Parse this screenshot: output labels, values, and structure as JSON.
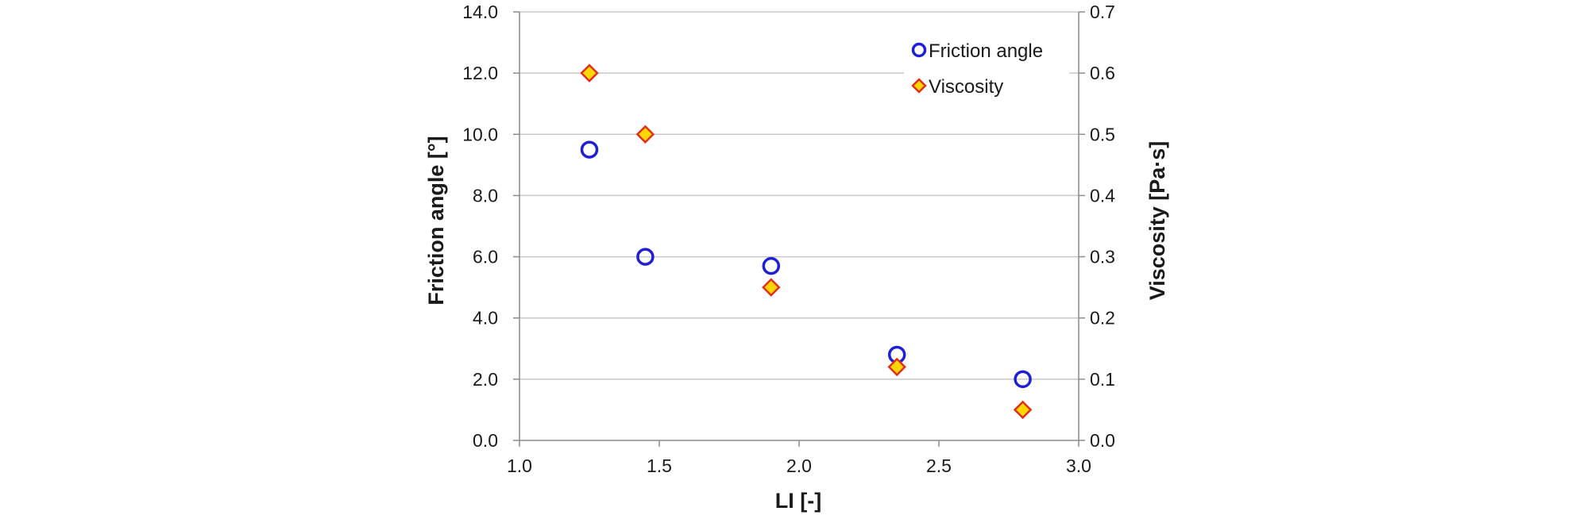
{
  "chart_data": {
    "type": "scatter",
    "xlabel": "LI [-]",
    "ylabel_left": "Friction angle [°]",
    "ylabel_right": "Viscosity [Pa·s]",
    "xlim": [
      1.0,
      3.0
    ],
    "ylim_left": [
      0.0,
      14.0
    ],
    "ylim_right": [
      0.0,
      0.7
    ],
    "x_ticks": [
      "1.0",
      "1.5",
      "2.0",
      "2.5",
      "3.0"
    ],
    "y_left_ticks": [
      "0.0",
      "2.0",
      "4.0",
      "6.0",
      "8.0",
      "10.0",
      "12.0",
      "14.0"
    ],
    "y_right_ticks": [
      "0.0",
      "0.1",
      "0.2",
      "0.3",
      "0.4",
      "0.5",
      "0.6",
      "0.7"
    ],
    "grid": "horizontal",
    "legend_position": "top-right",
    "series": [
      {
        "name": "Friction angle",
        "axis": "left",
        "marker": "circle",
        "color": "#1f1fd6",
        "x": [
          1.25,
          1.45,
          1.9,
          2.35,
          2.8
        ],
        "y": [
          9.5,
          6.0,
          5.7,
          2.8,
          2.0
        ]
      },
      {
        "name": "Viscosity",
        "axis": "right",
        "marker": "diamond",
        "color": "#ffd700",
        "edge_color": "#e0301e",
        "x": [
          1.25,
          1.45,
          1.9,
          2.35,
          2.8
        ],
        "y": [
          0.6,
          0.5,
          0.25,
          0.12,
          0.05
        ]
      }
    ]
  }
}
